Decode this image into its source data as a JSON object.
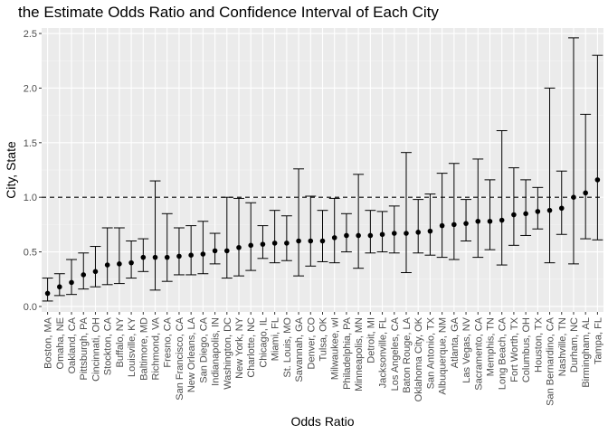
{
  "chart_data": {
    "type": "errorbar",
    "title": "the Estimate Odds Ratio and Confidence Interval of Each City",
    "xlabel": "Odds Ratio",
    "ylabel": "City, State",
    "ylim": [
      -0.05,
      2.55
    ],
    "yticks": [
      "0.0",
      "0.5",
      "1.0",
      "1.5",
      "2.0",
      "2.5"
    ],
    "reference_line": 1.0,
    "grid": true,
    "categories": [
      "Boston, MA",
      "Omaha, NE",
      "Oakland, CA",
      "Pittsburgh, PA",
      "Cincinnati, OH",
      "Stockton, CA",
      "Buffalo, NY",
      "Louisville, KY",
      "Baltimore, MD",
      "Richmond, VA",
      "Fresno, CA",
      "San Francisco, CA",
      "New Orleans, LA",
      "San Diego, CA",
      "Indianapolis, IN",
      "Washington, DC",
      "New York, NY",
      "Charlotte, NC",
      "Chicago, IL",
      "Miami, FL",
      "St. Louis, MO",
      "Savannah, GA",
      "Denver, CO",
      "Tulsa, OK",
      "Milwaukee, wI",
      "Philadelphia, PA",
      "Minneapolis, MN",
      "Detroit, MI",
      "Jacksonville, FL",
      "Los Angeles, CA",
      "Baton Rouge, LA",
      "Oklahoma City, OK",
      "San Antonio, TX",
      "Albuquerque, NM",
      "Atlanta, GA",
      "Las Vegas, NV",
      "Sacramento, CA",
      "Memphis, TN",
      "Long Beach, CA",
      "Fort Worth, TX",
      "Columbus, OH",
      "Houston, TX",
      "San Bernardino, CA",
      "Nashville, TN",
      "Durham, NC",
      "Birmingham, AL",
      "Tampa, FL"
    ],
    "estimate": [
      0.12,
      0.18,
      0.22,
      0.29,
      0.32,
      0.38,
      0.39,
      0.4,
      0.45,
      0.45,
      0.45,
      0.46,
      0.47,
      0.48,
      0.51,
      0.51,
      0.54,
      0.56,
      0.57,
      0.58,
      0.58,
      0.6,
      0.6,
      0.6,
      0.63,
      0.65,
      0.65,
      0.65,
      0.66,
      0.67,
      0.67,
      0.68,
      0.69,
      0.74,
      0.75,
      0.76,
      0.78,
      0.78,
      0.79,
      0.84,
      0.85,
      0.87,
      0.88,
      0.9,
      1.0,
      1.04,
      1.16
    ],
    "conf_low": [
      0.05,
      0.1,
      0.11,
      0.16,
      0.18,
      0.2,
      0.21,
      0.26,
      0.32,
      0.15,
      0.23,
      0.29,
      0.29,
      0.3,
      0.39,
      0.26,
      0.28,
      0.33,
      0.44,
      0.4,
      0.42,
      0.28,
      0.37,
      0.41,
      0.4,
      0.5,
      0.35,
      0.49,
      0.5,
      0.49,
      0.31,
      0.49,
      0.47,
      0.45,
      0.43,
      0.6,
      0.45,
      0.52,
      0.38,
      0.56,
      0.65,
      0.71,
      0.4,
      0.66,
      0.39,
      0.62,
      0.61
    ],
    "conf_high": [
      0.26,
      0.3,
      0.43,
      0.49,
      0.55,
      0.72,
      0.72,
      0.6,
      0.62,
      1.15,
      0.85,
      0.72,
      0.74,
      0.78,
      0.67,
      1.0,
      0.99,
      0.95,
      0.74,
      0.88,
      0.83,
      1.26,
      1.01,
      0.88,
      0.99,
      0.85,
      1.21,
      0.88,
      0.87,
      0.92,
      1.41,
      0.98,
      1.03,
      1.22,
      1.31,
      0.98,
      1.35,
      1.16,
      1.61,
      1.27,
      1.16,
      1.09,
      2.0,
      1.24,
      2.46,
      1.76,
      2.3
    ]
  }
}
